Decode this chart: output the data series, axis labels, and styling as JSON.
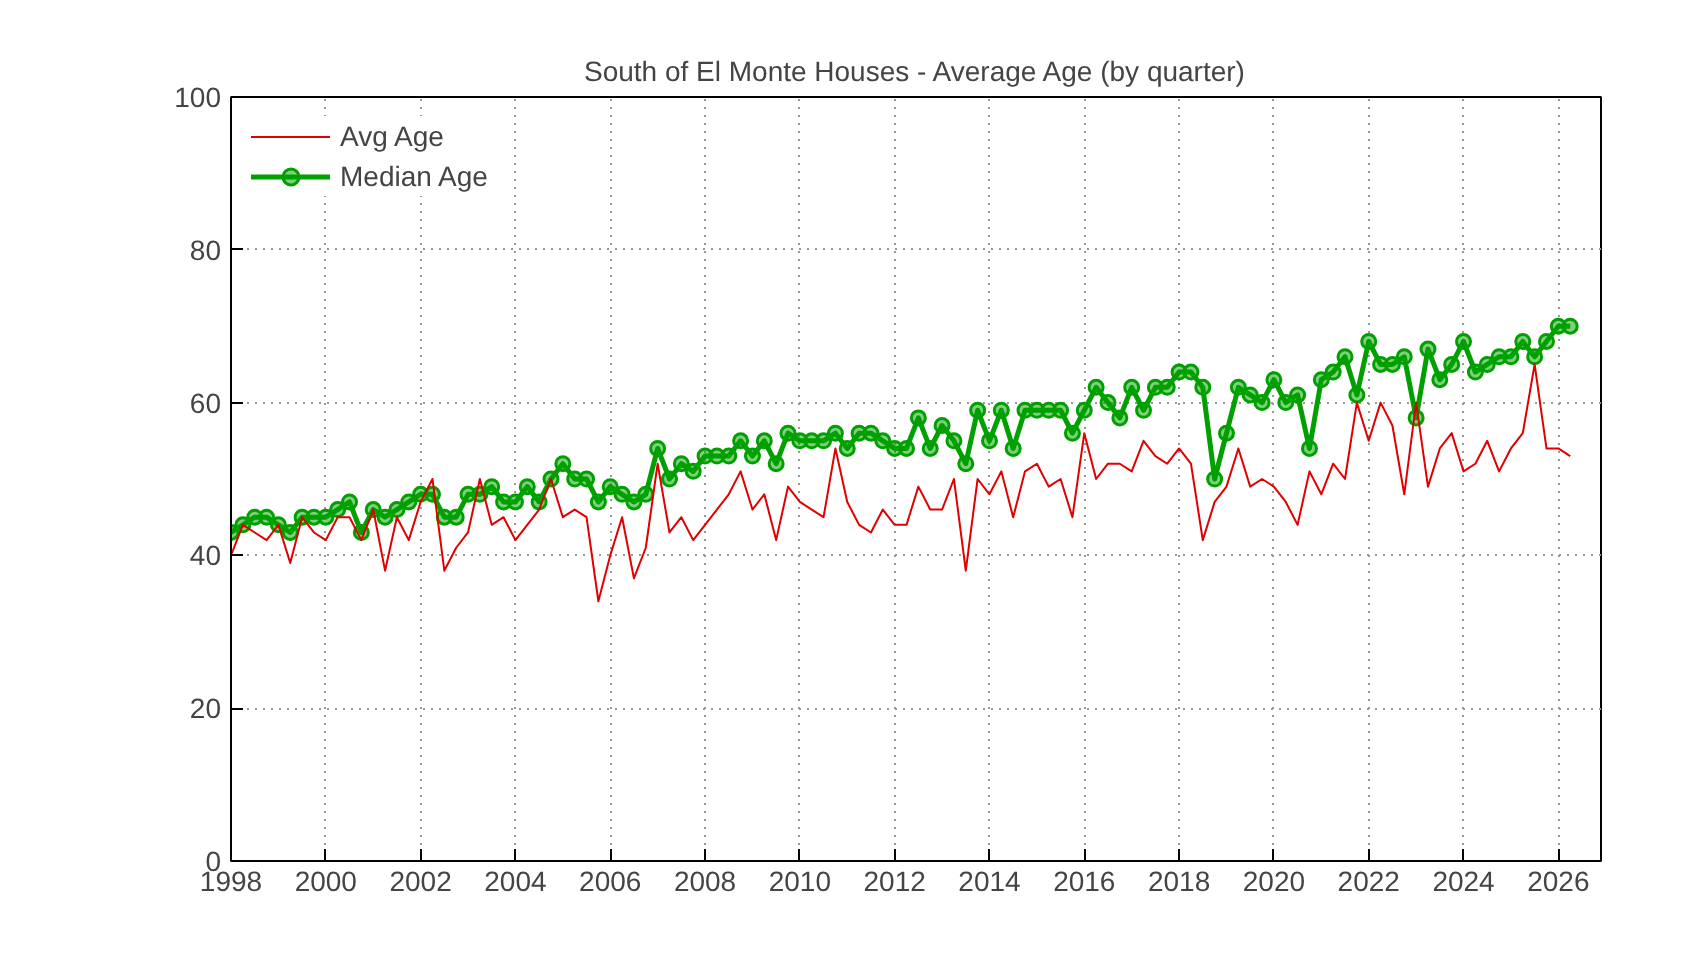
{
  "chart_data": {
    "type": "line",
    "title": "South of El Monte Houses - Average Age (by quarter)",
    "x": [
      1998,
      1998.25,
      1998.5,
      1998.75,
      1999,
      1999.25,
      1999.5,
      1999.75,
      2000,
      2000.25,
      2000.5,
      2000.75,
      2001,
      2001.25,
      2001.5,
      2001.75,
      2002,
      2002.25,
      2002.5,
      2002.75,
      2003,
      2003.25,
      2003.5,
      2003.75,
      2004,
      2004.25,
      2004.5,
      2004.75,
      2005,
      2005.25,
      2005.5,
      2005.75,
      2006,
      2006.25,
      2006.5,
      2006.75,
      2007,
      2007.25,
      2007.5,
      2007.75,
      2008,
      2008.25,
      2008.5,
      2008.75,
      2009,
      2009.25,
      2009.5,
      2009.75,
      2010,
      2010.25,
      2010.5,
      2010.75,
      2011,
      2011.25,
      2011.5,
      2011.75,
      2012,
      2012.25,
      2012.5,
      2012.75,
      2013,
      2013.25,
      2013.5,
      2013.75,
      2014,
      2014.25,
      2014.5,
      2014.75,
      2015,
      2015.25,
      2015.5,
      2015.75,
      2016,
      2016.25,
      2016.5,
      2016.75,
      2017,
      2017.25,
      2017.5,
      2017.75,
      2018,
      2018.25,
      2018.5,
      2018.75,
      2019,
      2019.25,
      2019.5,
      2019.75,
      2020,
      2020.25,
      2020.5,
      2020.75,
      2021,
      2021.25,
      2021.5,
      2021.75,
      2022,
      2022.25,
      2022.5,
      2022.75,
      2023,
      2023.25,
      2023.5,
      2023.75,
      2024,
      2024.25,
      2024.5,
      2024.75,
      2025,
      2025.25,
      2025.5,
      2025.75,
      2026,
      2026.25
    ],
    "series": [
      {
        "name": "Avg Age",
        "color": "#e00000",
        "marker": "none",
        "values": [
          40,
          44,
          43,
          42,
          44,
          39,
          45,
          43,
          42,
          45,
          45,
          42,
          46,
          38,
          45,
          42,
          47,
          50,
          38,
          41,
          43,
          50,
          44,
          45,
          42,
          44,
          46,
          50,
          45,
          46,
          45,
          34,
          40,
          45,
          37,
          41,
          52,
          43,
          45,
          42,
          44,
          46,
          48,
          51,
          46,
          48,
          42,
          49,
          47,
          46,
          45,
          54,
          47,
          44,
          43,
          46,
          44,
          44,
          49,
          46,
          46,
          50,
          38,
          50,
          48,
          51,
          45,
          51,
          52,
          49,
          50,
          45,
          56,
          50,
          52,
          52,
          51,
          55,
          53,
          52,
          54,
          52,
          42,
          47,
          49,
          54,
          49,
          50,
          49,
          47,
          44,
          51,
          48,
          52,
          50,
          60,
          55,
          60,
          57,
          48,
          60,
          49,
          54,
          56,
          51,
          52,
          55,
          51,
          54,
          56,
          65,
          54,
          54,
          53
        ]
      },
      {
        "name": "Median Age",
        "color": "#00a000",
        "marker": "circle",
        "values": [
          43,
          44,
          45,
          45,
          44,
          43,
          45,
          45,
          45,
          46,
          47,
          43,
          46,
          45,
          46,
          47,
          48,
          48,
          45,
          45,
          48,
          48,
          49,
          47,
          47,
          49,
          47,
          50,
          52,
          50,
          50,
          47,
          49,
          48,
          47,
          48,
          54,
          50,
          52,
          51,
          53,
          53,
          53,
          55,
          53,
          55,
          52,
          56,
          55,
          55,
          55,
          56,
          54,
          56,
          56,
          55,
          54,
          54,
          58,
          54,
          57,
          55,
          52,
          59,
          55,
          59,
          54,
          59,
          59,
          59,
          59,
          56,
          59,
          62,
          60,
          58,
          62,
          59,
          62,
          62,
          64,
          64,
          62,
          50,
          56,
          62,
          61,
          60,
          63,
          60,
          61,
          54,
          63,
          64,
          66,
          61,
          68,
          65,
          65,
          66,
          58,
          67,
          63,
          65,
          68,
          64,
          65,
          66,
          66,
          68,
          66,
          68,
          70,
          70
        ]
      }
    ],
    "xlim": [
      1998,
      2026.9
    ],
    "ylim": [
      0,
      100
    ],
    "xticks": [
      1998,
      2000,
      2002,
      2004,
      2006,
      2008,
      2010,
      2012,
      2014,
      2016,
      2018,
      2020,
      2022,
      2024,
      2026
    ],
    "yticks": [
      0,
      20,
      40,
      60,
      80,
      100
    ],
    "grid": true,
    "legend": "top left",
    "line_style": "solid"
  }
}
